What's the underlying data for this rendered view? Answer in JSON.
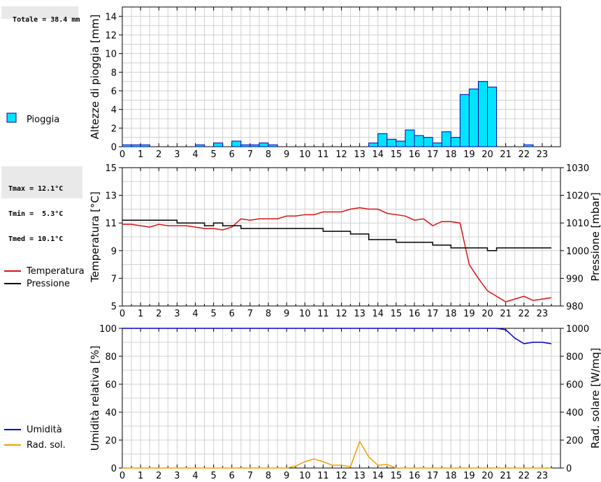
{
  "summary": {
    "totale": "Totale = 38.4 mm",
    "tmax": "Tmax = 12.1°C",
    "tmin": "Tmin =  5.3°C",
    "tmed": "Tmed = 10.1°C"
  },
  "colors": {
    "rain": "#00e5ff",
    "temperature": "#dd1111",
    "pressure": "#000000",
    "humidity": "#0000cc",
    "radiation": "#f0a000",
    "grid": "#d0d0d0"
  },
  "chart_data": [
    {
      "type": "bar",
      "ylabel": "Altezze di pioggia [mm]",
      "ylim": [
        0,
        15
      ],
      "yticks": [
        0,
        2,
        4,
        6,
        8,
        10,
        12,
        14
      ],
      "xticks": [
        "0",
        "1",
        "2",
        "3",
        "4",
        "5",
        "6",
        "7",
        "8",
        "9",
        "10",
        "11",
        "12",
        "13",
        "14",
        "15",
        "16",
        "17",
        "18",
        "19",
        "20",
        "21",
        "22",
        "23"
      ],
      "legend": [
        "Pioggia"
      ],
      "series": [
        {
          "name": "Pioggia",
          "x": [
            0,
            0.5,
            1,
            4,
            5,
            6,
            6.5,
            7,
            7.5,
            8,
            13.5,
            14,
            14.5,
            15,
            15.5,
            16,
            16.5,
            17,
            17.5,
            18,
            18.5,
            19,
            19.5,
            20,
            22
          ],
          "values": [
            0.2,
            0.2,
            0.2,
            0.2,
            0.4,
            0.6,
            0.2,
            0.2,
            0.4,
            0.2,
            0.4,
            1.4,
            0.8,
            0.6,
            1.8,
            1.2,
            1.0,
            0.4,
            1.6,
            1.0,
            5.6,
            6.2,
            7.0,
            6.4,
            0.2
          ]
        }
      ]
    },
    {
      "type": "line",
      "ylabel": "Temperatura [°C]",
      "y2label": "Pressione [mbar]",
      "ylim": [
        5,
        15
      ],
      "y2lim": [
        980,
        1030
      ],
      "yticks": [
        5,
        7,
        9,
        11,
        13,
        15
      ],
      "y2ticks": [
        980,
        990,
        1000,
        1010,
        1020,
        1030
      ],
      "xticks": [
        "0",
        "1",
        "2",
        "3",
        "4",
        "5",
        "6",
        "7",
        "8",
        "9",
        "10",
        "11",
        "12",
        "13",
        "14",
        "15",
        "16",
        "17",
        "18",
        "19",
        "20",
        "21",
        "22",
        "23"
      ],
      "legend": [
        "Temperatura",
        "Pressione"
      ],
      "series": [
        {
          "name": "Temperatura",
          "axis": "left",
          "x": [
            0,
            0.5,
            1,
            1.5,
            2,
            2.5,
            3,
            3.5,
            4,
            4.5,
            5,
            5.5,
            6,
            6.5,
            7,
            7.5,
            8,
            8.5,
            9,
            9.5,
            10,
            10.5,
            11,
            11.5,
            12,
            12.5,
            13,
            13.5,
            14,
            14.5,
            15,
            15.5,
            16,
            16.5,
            17,
            17.5,
            18,
            18.5,
            19,
            19.5,
            20,
            20.5,
            21,
            21.5,
            22,
            22.5,
            23,
            23.5
          ],
          "values": [
            10.9,
            10.9,
            10.8,
            10.7,
            10.9,
            10.8,
            10.8,
            10.8,
            10.7,
            10.6,
            10.6,
            10.5,
            10.7,
            11.3,
            11.2,
            11.3,
            11.3,
            11.3,
            11.5,
            11.5,
            11.6,
            11.6,
            11.8,
            11.8,
            11.8,
            12.0,
            12.1,
            12.0,
            12.0,
            11.7,
            11.6,
            11.5,
            11.2,
            11.3,
            10.8,
            11.1,
            11.1,
            11.0,
            8.0,
            7.0,
            6.1,
            5.7,
            5.3,
            5.5,
            5.7,
            5.4,
            5.5,
            5.6
          ]
        },
        {
          "name": "Pressione",
          "axis": "right",
          "x": [
            0,
            0.5,
            1,
            1.5,
            2,
            2.5,
            3,
            3.5,
            4,
            4.5,
            5,
            5.5,
            6,
            6.5,
            7,
            7.5,
            8,
            8.5,
            9,
            9.5,
            10,
            10.5,
            11,
            11.5,
            12,
            12.5,
            13,
            13.5,
            14,
            14.5,
            15,
            15.5,
            16,
            16.5,
            17,
            17.5,
            18,
            18.5,
            19,
            19.5,
            20,
            20.5,
            21,
            21.5,
            22,
            22.5,
            23,
            23.5
          ],
          "values": [
            1011,
            1011,
            1011,
            1011,
            1011,
            1011,
            1010,
            1010,
            1010,
            1009,
            1010,
            1009,
            1009,
            1008,
            1008,
            1008,
            1008,
            1008,
            1008,
            1008,
            1008,
            1008,
            1007,
            1007,
            1007,
            1006,
            1006,
            1004,
            1004,
            1004,
            1003,
            1003,
            1003,
            1003,
            1002,
            1002,
            1001,
            1001,
            1001,
            1001,
            1000,
            1001,
            1001,
            1001,
            1001,
            1001,
            1001,
            1001
          ]
        }
      ]
    },
    {
      "type": "line",
      "ylabel": "Umidità relativa [%]",
      "y2label": "Rad. solare [W/mq]",
      "ylim": [
        0,
        100
      ],
      "y2lim": [
        0,
        1000
      ],
      "yticks": [
        0,
        20,
        40,
        60,
        80,
        100
      ],
      "y2ticks": [
        0,
        200,
        400,
        600,
        800,
        1000
      ],
      "xticks": [
        "0",
        "1",
        "2",
        "3",
        "4",
        "5",
        "6",
        "7",
        "8",
        "9",
        "10",
        "11",
        "12",
        "13",
        "14",
        "15",
        "16",
        "17",
        "18",
        "19",
        "20",
        "21",
        "22",
        "23"
      ],
      "legend": [
        "Umidità",
        "Rad. sol."
      ],
      "series": [
        {
          "name": "Umidità",
          "axis": "left",
          "x": [
            0,
            20.5,
            21,
            21.5,
            22,
            22.5,
            23,
            23.5
          ],
          "values": [
            100,
            100,
            99,
            93,
            89,
            90,
            90,
            89
          ]
        },
        {
          "name": "Rad. sol.",
          "axis": "right",
          "x": [
            0,
            9,
            9.5,
            10,
            10.5,
            11,
            11.5,
            12,
            12.5,
            13,
            13.5,
            14,
            14.5,
            15,
            15.5,
            23.5
          ],
          "values": [
            0,
            0,
            15,
            45,
            65,
            45,
            20,
            20,
            10,
            190,
            80,
            20,
            25,
            0,
            0,
            0
          ]
        }
      ]
    }
  ]
}
